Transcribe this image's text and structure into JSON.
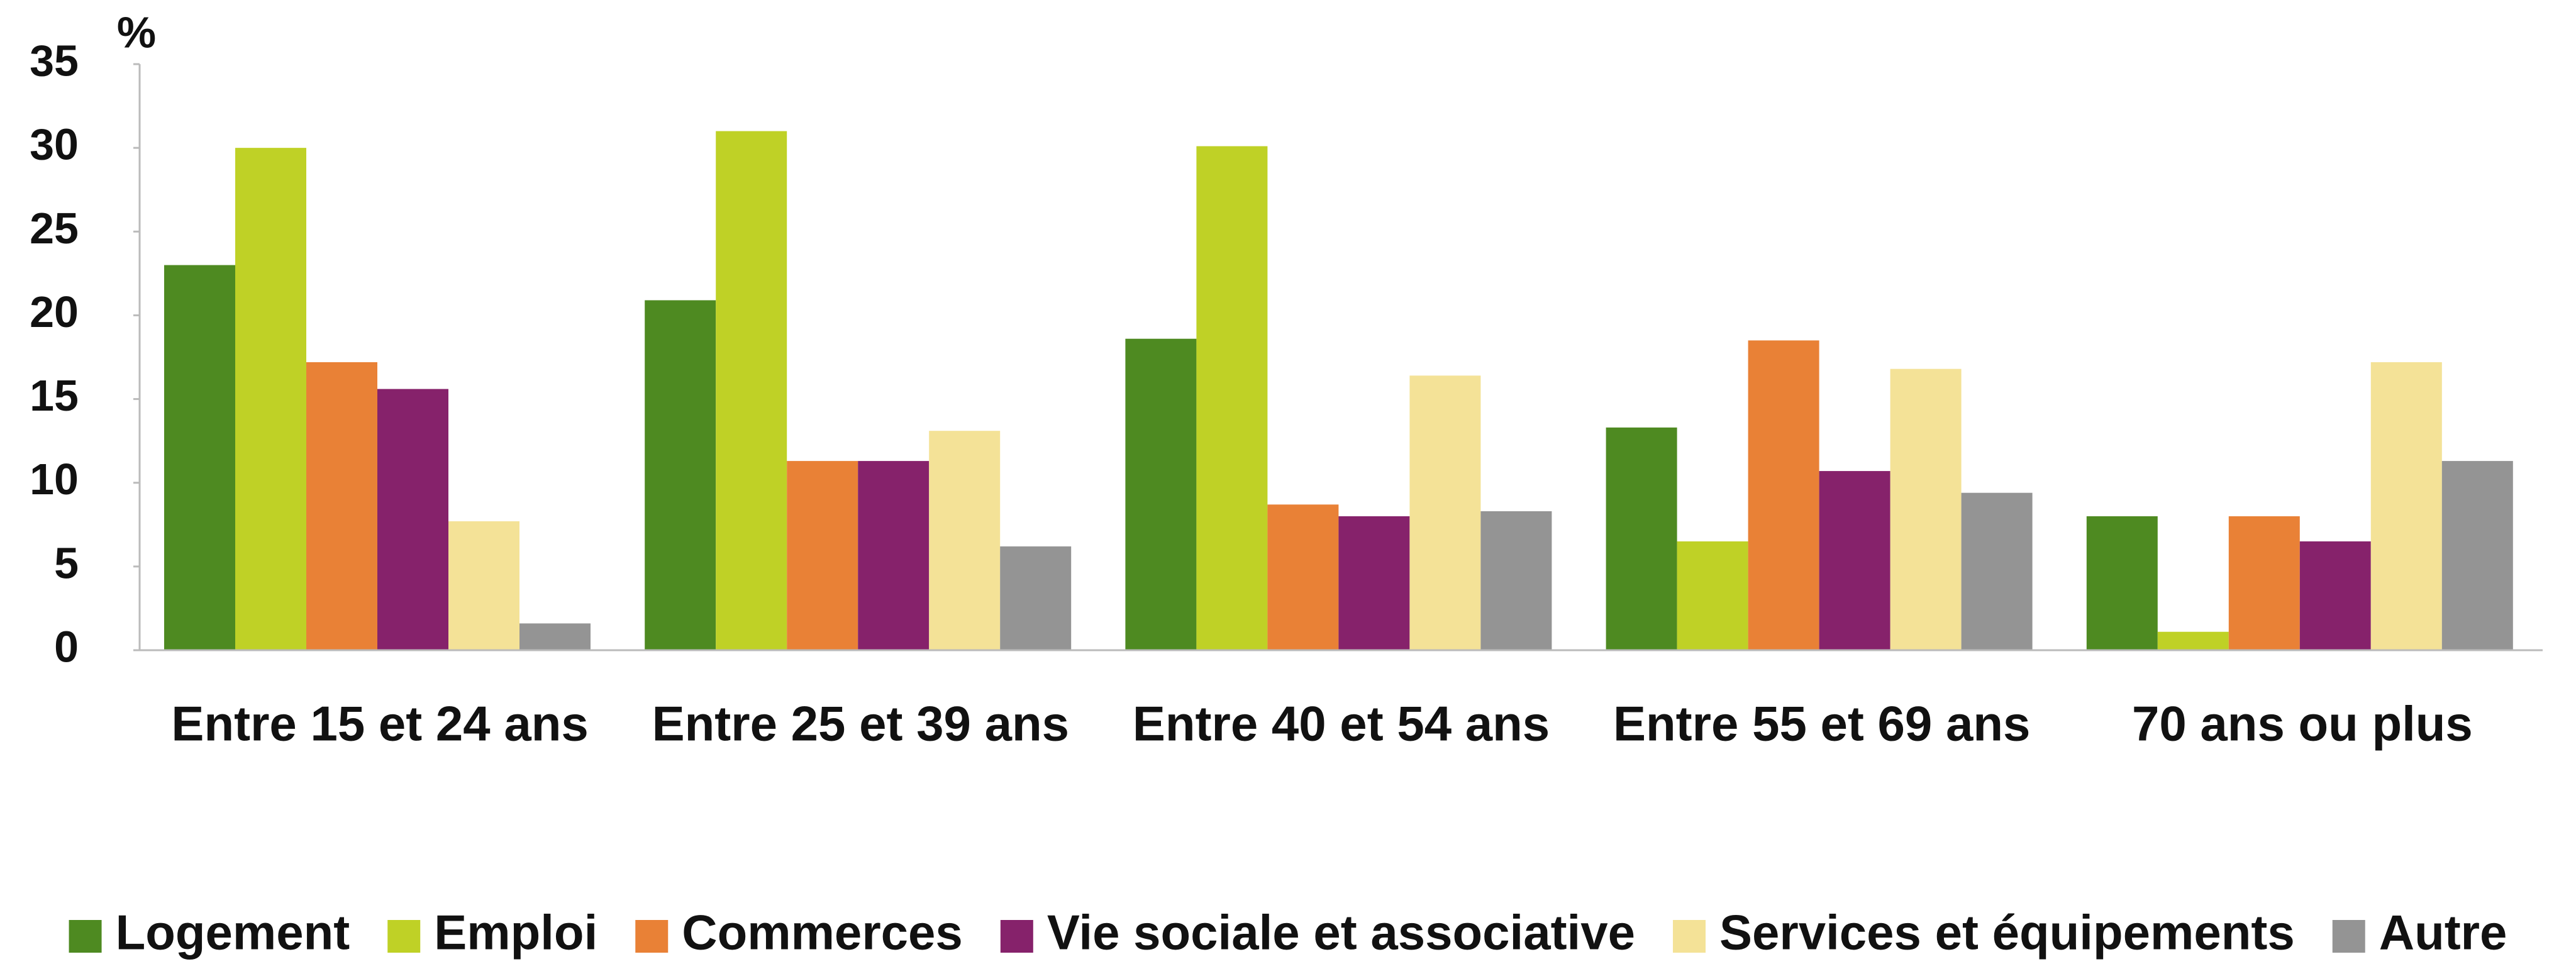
{
  "chart_data": {
    "type": "bar",
    "y_unit": "%",
    "categories": [
      "Entre 15 et 24 ans",
      "Entre 25 et 39 ans",
      "Entre 40 et 54 ans",
      "Entre 55 et 69 ans",
      "70 ans ou plus"
    ],
    "series": [
      {
        "name": "Logement",
        "color": "#4e8a21",
        "values": [
          23,
          20.9,
          18.6,
          13.3,
          8
        ]
      },
      {
        "name": "Emploi",
        "color": "#bfd126",
        "values": [
          30,
          31,
          30.1,
          6.5,
          1.1
        ]
      },
      {
        "name": "Commerces",
        "color": "#e98136",
        "values": [
          17.2,
          11.3,
          8.7,
          18.5,
          8
        ]
      },
      {
        "name": "Vie sociale et associative",
        "color": "#86226b",
        "values": [
          15.6,
          11.3,
          8,
          10.7,
          6.5
        ]
      },
      {
        "name": "Services et équipements",
        "color": "#f4e297",
        "values": [
          7.7,
          13.1,
          16.4,
          16.8,
          17.2
        ]
      },
      {
        "name": "Autre",
        "color": "#949494",
        "values": [
          1.6,
          6.2,
          8.3,
          9.4,
          11.3
        ]
      }
    ],
    "ylim": [
      0,
      35
    ],
    "yticks": [
      0,
      5,
      10,
      15,
      20,
      25,
      30,
      35
    ],
    "grid": false,
    "legend": "bottom"
  }
}
